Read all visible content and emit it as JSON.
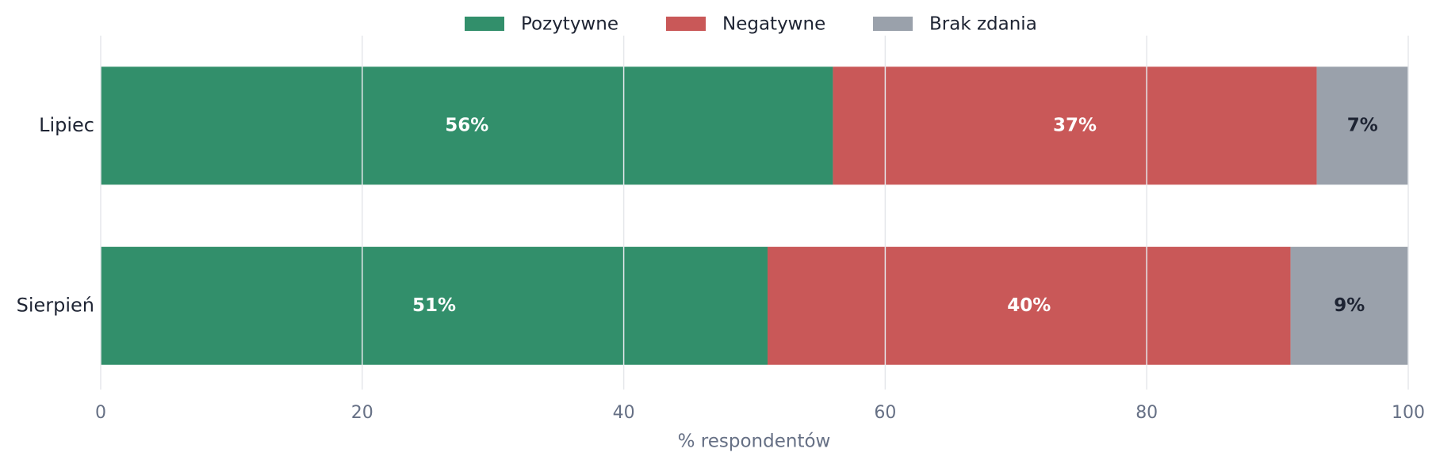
{
  "chart_data": {
    "type": "bar",
    "orientation": "horizontal",
    "stacked": true,
    "categories": [
      "Lipiec",
      "Sierpień"
    ],
    "series": [
      {
        "name": "Pozytywne",
        "color": "#328f6b",
        "label_color": "#ffffff",
        "values": [
          56,
          51
        ],
        "value_labels": [
          "56%",
          "51%"
        ]
      },
      {
        "name": "Negatywne",
        "color": "#c95858",
        "label_color": "#ffffff",
        "values": [
          37,
          40
        ],
        "value_labels": [
          "37%",
          "40%"
        ]
      },
      {
        "name": "Brak zdania",
        "color": "#9aa1ab",
        "label_color": "#1e2433",
        "values": [
          7,
          9
        ],
        "value_labels": [
          "7%",
          "9%"
        ]
      }
    ],
    "xlabel": "% respondentów",
    "xlim": [
      0,
      100
    ],
    "xticks": [
      0,
      20,
      40,
      60,
      80,
      100
    ],
    "grid": true,
    "legend": "top"
  }
}
